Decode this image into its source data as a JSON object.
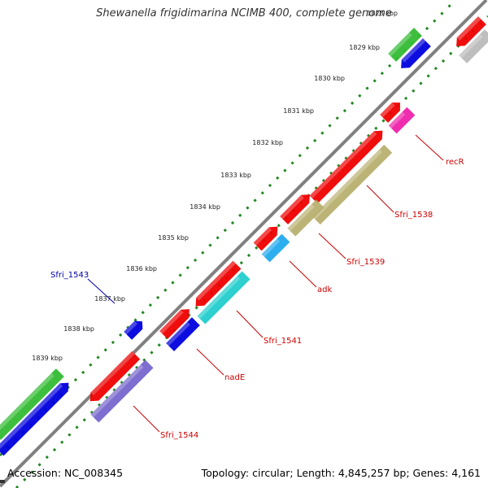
{
  "map": {
    "title": "Shewanella frigidimarina NCIMB 400, complete genome",
    "accession_text": "Accession: NC_008345",
    "summary_text": "Topology: circular; Length: 4,845,257 bp; Genes: 4,161",
    "tick_labels": [
      "1828 kbp",
      "1829 kbp",
      "1830 kbp",
      "1831 kbp",
      "1832 kbp",
      "1833 kbp",
      "1834 kbp",
      "1835 kbp",
      "1836 kbp",
      "1837 kbp",
      "1838 kbp",
      "1839 kbp"
    ],
    "gene_labels": [
      {
        "name": "recR",
        "color": "#cc0000"
      },
      {
        "name": "Sfri_1538",
        "color": "#cc0000"
      },
      {
        "name": "Sfri_1539",
        "color": "#cc0000"
      },
      {
        "name": "adk",
        "color": "#cc0000"
      },
      {
        "name": "Sfri_1541",
        "color": "#cc0000"
      },
      {
        "name": "nadE",
        "color": "#cc0000"
      },
      {
        "name": "Sfri_1544",
        "color": "#cc0000"
      },
      {
        "name": "Sfri_1543",
        "color": "#0000aa"
      }
    ],
    "colors": {
      "backbone": "#808080",
      "tick_dots": "#228822",
      "gene_red": "#ee0000",
      "gene_blue": "#0000dd",
      "gene_green": "#33bb33",
      "gene_olive": "#b8b070",
      "gene_cyan": "#22cccc",
      "gene_skyblue": "#22aaee",
      "gene_magenta": "#ee22aa",
      "gene_purple": "#7766cc",
      "gene_grey": "#bbbbbb"
    }
  }
}
